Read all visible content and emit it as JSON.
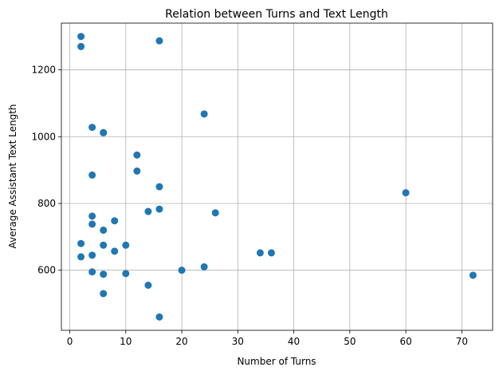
{
  "chart_data": {
    "type": "scatter",
    "title": "Relation between Turns and Text Length",
    "xlabel": "Number of Turns",
    "ylabel": "Average Assistant Text Length",
    "xlim": [
      -1.5,
      75.5
    ],
    "ylim": [
      420,
      1340
    ],
    "xticks": [
      0,
      10,
      20,
      30,
      40,
      50,
      60,
      70
    ],
    "yticks": [
      600,
      800,
      1000,
      1200
    ],
    "grid": true,
    "marker_color": "#1f77b4",
    "series": [
      {
        "x": [
          2,
          2,
          2,
          2,
          4,
          4,
          4,
          4,
          4,
          4,
          6,
          6,
          6,
          6,
          6,
          6,
          8,
          8,
          10,
          10,
          12,
          12,
          14,
          14,
          16,
          16,
          16,
          16,
          20,
          24,
          24,
          26,
          34,
          36,
          60,
          72
        ],
        "y": [
          1300,
          1270,
          680,
          640,
          1028,
          885,
          762,
          738,
          645,
          595,
          1012,
          720,
          675,
          588,
          530,
          1012,
          748,
          657,
          675,
          590,
          945,
          897,
          776,
          555,
          1287,
          850,
          783,
          460,
          600,
          1068,
          610,
          772,
          652,
          652,
          832,
          585
        ]
      }
    ]
  }
}
